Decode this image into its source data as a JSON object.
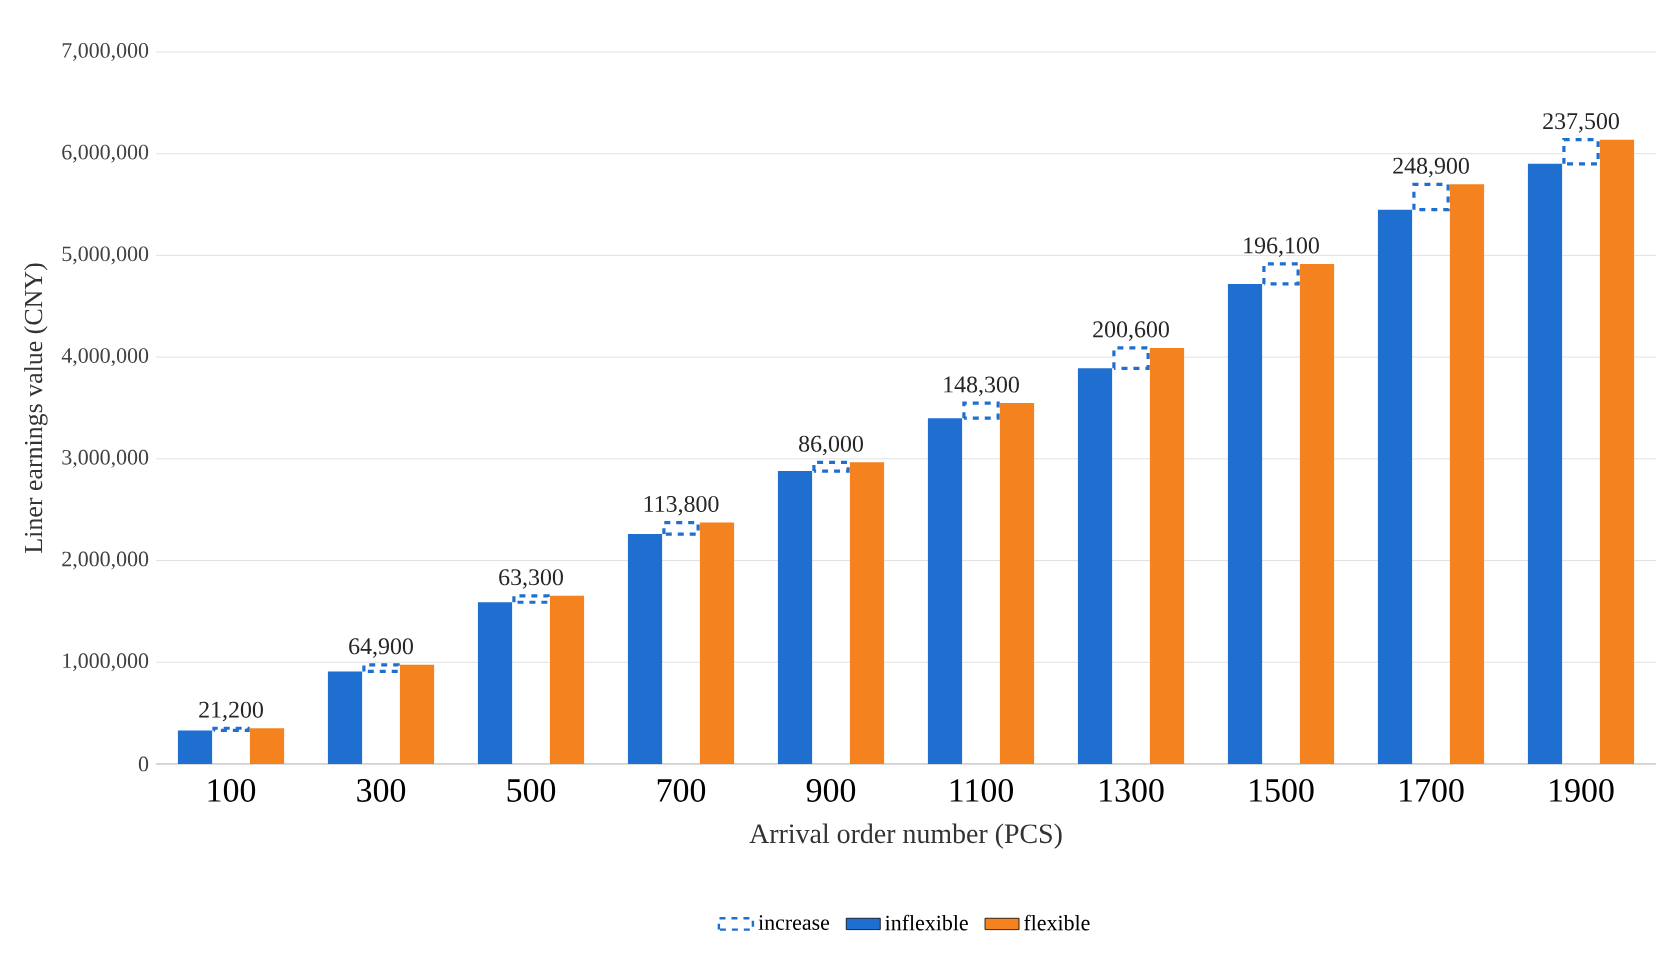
{
  "chart_data": {
    "type": "bar",
    "xlabel": "Arrival order number (PCS)",
    "ylabel": "Liner earnings value (CNY)",
    "categories": [
      "100",
      "300",
      "500",
      "700",
      "900",
      "1100",
      "1300",
      "1500",
      "1700",
      "1900"
    ],
    "series": [
      {
        "name": "increase",
        "color": "#1f6fd1",
        "line_style": "dashed",
        "base": [
          330000,
          910000,
          1590000,
          2260000,
          2880000,
          3400000,
          3890000,
          4720000,
          5450000,
          5900000
        ],
        "values": [
          21200,
          64900,
          63300,
          113800,
          86000,
          148300,
          200600,
          196100,
          248900,
          237500
        ],
        "value_labels": [
          "21,200",
          "64,900",
          "63,300",
          "113,800",
          "86,000",
          "148,300",
          "200,600",
          "196,100",
          "248,900",
          "237,500"
        ]
      },
      {
        "name": "inflexible",
        "color": "#1f6fd1",
        "values": [
          330000,
          910000,
          1590000,
          2260000,
          2880000,
          3400000,
          3890000,
          4720000,
          5450000,
          5900000
        ]
      },
      {
        "name": "flexible",
        "color": "#f4821f",
        "values": [
          351200,
          974900,
          1653300,
          2373800,
          2966000,
          3548300,
          4090600,
          4916100,
          5698900,
          6137500
        ]
      }
    ],
    "ylim": [
      0,
      7000000
    ],
    "yticks": [
      0,
      {
        "value": 1000000,
        "label": "1,000,000"
      },
      {
        "value": 2000000,
        "label": "2,000,000"
      },
      {
        "value": 3000000,
        "label": "3,000,000"
      },
      {
        "value": 4000000,
        "label": "4,000,000"
      },
      {
        "value": 5000000,
        "label": "5,000,000"
      },
      {
        "value": 6000000,
        "label": "6,000,000"
      },
      {
        "value": 7000000,
        "label": "7,000,000"
      }
    ],
    "grid": "y",
    "legend": "bottom"
  }
}
